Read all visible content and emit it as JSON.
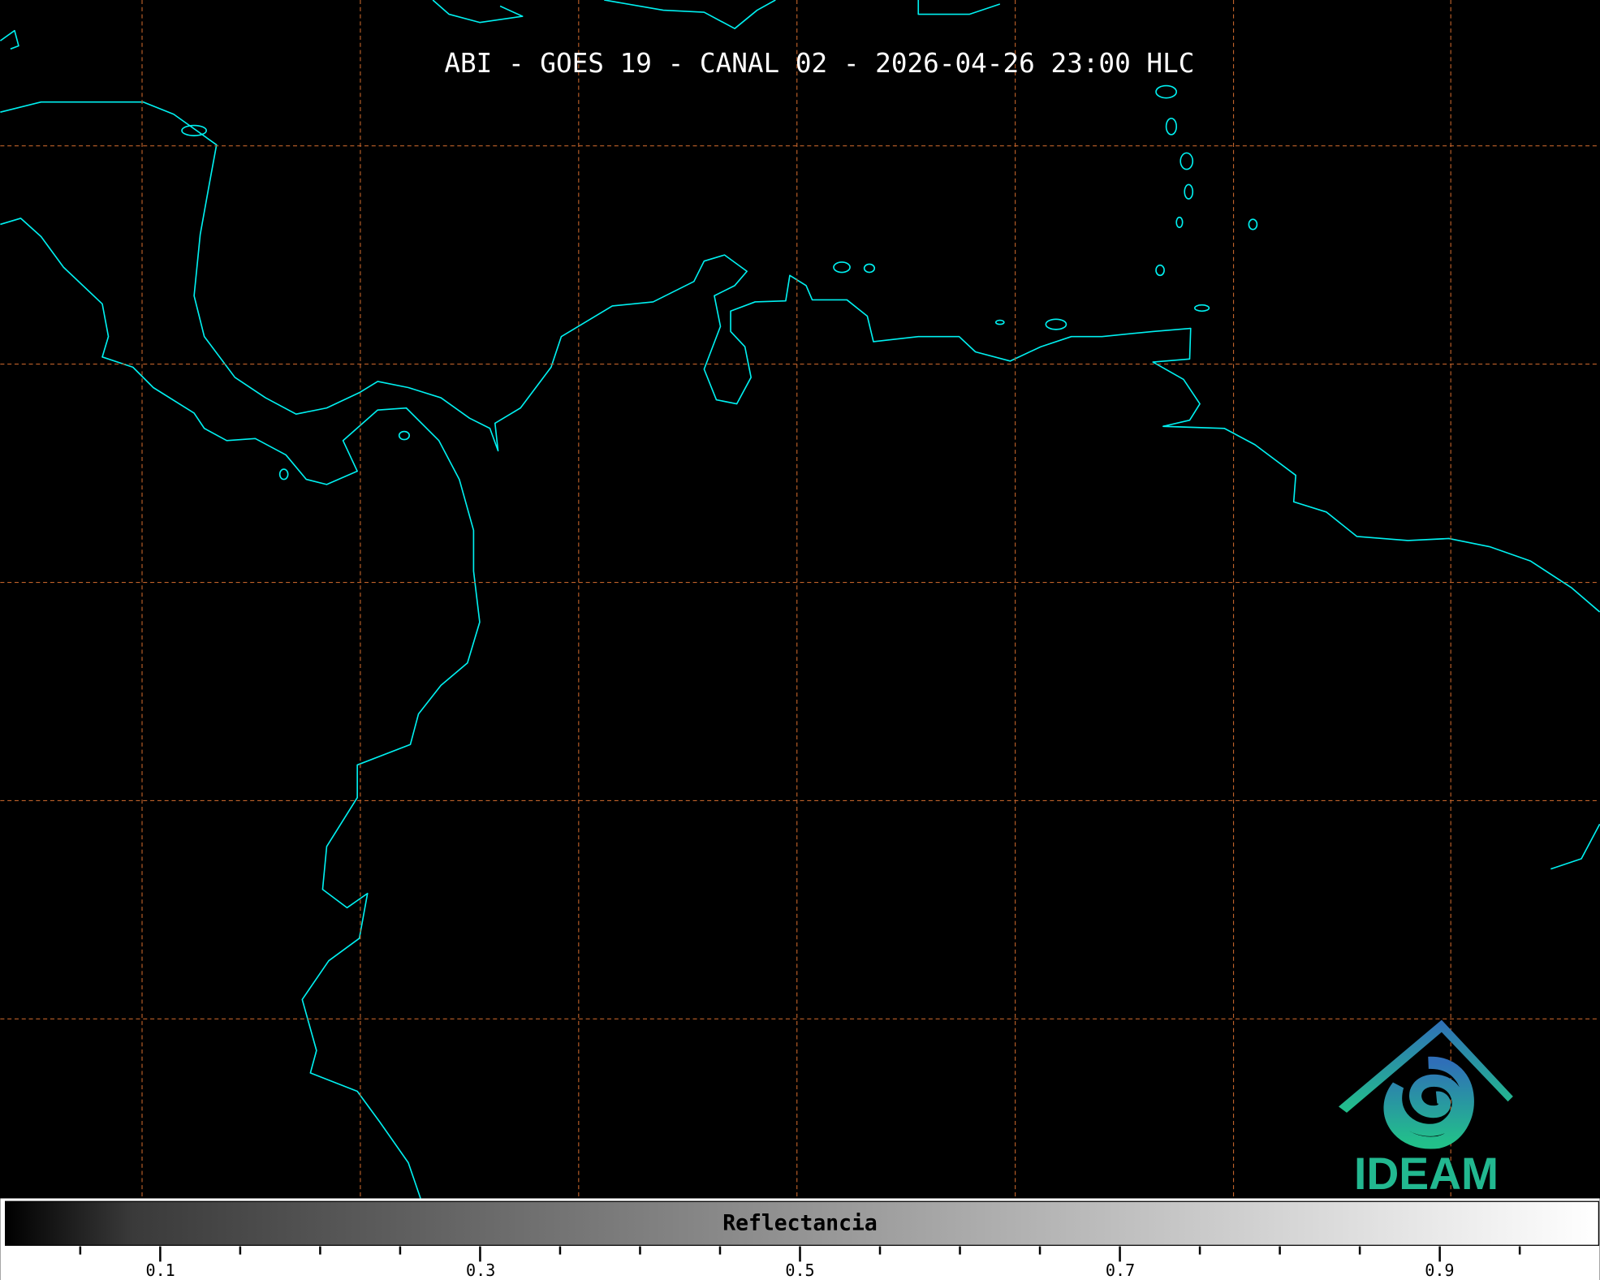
{
  "title": "ABI - GOES 19 - CANAL 02 - 2026-04-26 23:00 HLC",
  "colorbar": {
    "label": "Reflectancia",
    "colormap": "grayscale black-to-white",
    "range": [
      0.0,
      1.0
    ],
    "major_ticks": [
      "0.1",
      "0.3",
      "0.5",
      "0.7",
      "0.9"
    ],
    "minor_tick_step": 0.05
  },
  "map": {
    "background": "#000000",
    "coastline_color": "#00f0f0",
    "gridline_color": "#c0622a",
    "gridline_style": "dashed"
  },
  "logo": {
    "text": "IDEAM",
    "colors": [
      "#2f6fb8",
      "#22b890"
    ]
  }
}
